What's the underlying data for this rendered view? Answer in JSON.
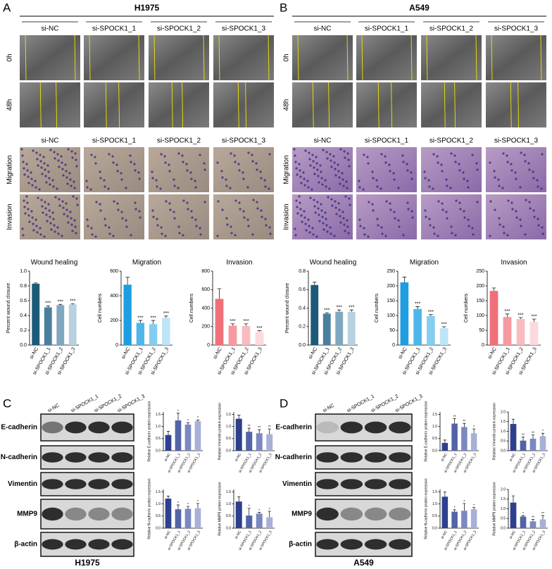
{
  "panel_a": {
    "label": "A",
    "title": "H1975",
    "columns": [
      "si-NC",
      "si-SPOCK1_1",
      "si-SPOCK1_2",
      "si-SPOCK1_3"
    ],
    "scratch_rows": [
      "0h",
      "48h"
    ],
    "transwell_columns": [
      "si-NC",
      "si-SPOCK1_1",
      "si-SPOCK1_2",
      "si-SPOCK1_3"
    ],
    "transwell_rows": [
      "Migration",
      "Invasion"
    ]
  },
  "panel_b": {
    "label": "B",
    "title": "A549",
    "columns": [
      "si-NC",
      "si-SPOCK1_1",
      "si-SPOCK1_2",
      "si-SPOCK1_3"
    ],
    "scratch_rows": [
      "0h",
      "48h"
    ],
    "transwell_columns": [
      "si-NC",
      "si-SPOCK1_1",
      "si-SPOCK1_2",
      "si-SPOCK1_3"
    ],
    "transwell_rows": [
      "Migration",
      "Invasion"
    ]
  },
  "panel_c": {
    "label": "C",
    "cell_line": "H1975",
    "lanes": [
      "si-NC",
      "si-SPOCK1_1",
      "si-SPOCK1_2",
      "si-SPOCK1_3"
    ],
    "proteins": [
      "E-cadherin",
      "N-cadherin",
      "Vimentin",
      "MMP9",
      "β-actin"
    ]
  },
  "panel_d": {
    "label": "D",
    "cell_line": "A549",
    "lanes": [
      "si-NC",
      "si-SPOCK1_1",
      "si-SPOCK1_2",
      "si-SPOCK1_3"
    ],
    "proteins": [
      "E-cadherin",
      "N-cadherin",
      "Vimentin",
      "MMP9",
      "β-actin"
    ]
  },
  "chart_data": [
    {
      "type": "bar",
      "title": "Wound healing",
      "ylabel": "Percent wound closure",
      "categories": [
        "si-NC",
        "si-SPOCK1_1",
        "si-SPOCK1_2",
        "si-SPOCK1_3"
      ],
      "values": [
        0.83,
        0.51,
        0.54,
        0.55
      ],
      "errors": [
        0.01,
        0.02,
        0.01,
        0.01
      ],
      "significance": [
        null,
        "***",
        "***",
        "***"
      ],
      "colors": [
        "#1b5a78",
        "#4a7f9e",
        "#7fa8c0",
        "#b8d1df"
      ],
      "ylim": [
        0,
        1
      ],
      "yticks": [
        {
          "value": 0,
          "label": "0.0"
        },
        0.2,
        0.4,
        0.6,
        0.8,
        {
          "value": 1,
          "label": "1.0"
        }
      ]
    },
    {
      "type": "bar",
      "title": "Migration",
      "ylabel": "Cell numbers",
      "categories": [
        "si-NC",
        "si-SPOCK1_1",
        "si-SPOCK1_2",
        "si-SPOCK1_3"
      ],
      "values": [
        490,
        180,
        170,
        220
      ],
      "errors": [
        60,
        20,
        30,
        15
      ],
      "significance": [
        null,
        "***",
        "***",
        "***"
      ],
      "colors": [
        "#1e9ee0",
        "#4fb6ea",
        "#85cdf0",
        "#bde4f7"
      ],
      "ylim": [
        0,
        600
      ],
      "yticks": [
        0,
        200,
        400,
        600
      ]
    },
    {
      "type": "bar",
      "title": "Invasion",
      "ylabel": "Cell numbers",
      "categories": [
        "si-NC",
        "si-SPOCK1_1",
        "si-SPOCK1_2",
        "si-SPOCK1_3"
      ],
      "values": [
        500,
        210,
        205,
        145
      ],
      "errors": [
        110,
        20,
        25,
        10
      ],
      "significance": [
        null,
        "***",
        "***",
        "***"
      ],
      "colors": [
        "#f0707a",
        "#f59aa0",
        "#f8bcc0",
        "#fbd9dc"
      ],
      "ylim": [
        0,
        800
      ],
      "yticks": [
        0,
        200,
        400,
        600,
        800
      ]
    },
    {
      "type": "bar",
      "title": "Wound healing",
      "ylabel": "Percent wound closure",
      "categories": [
        "si-NC",
        "si-SPOCK1_1",
        "si-SPOCK1_2",
        "si-SPOCK1_3"
      ],
      "values": [
        0.65,
        0.34,
        0.36,
        0.36
      ],
      "errors": [
        0.03,
        0.01,
        0.02,
        0.02
      ],
      "significance": [
        null,
        "***",
        "***",
        "***"
      ],
      "colors": [
        "#1b5a78",
        "#4a7f9e",
        "#7fa8c0",
        "#b8d1df"
      ],
      "ylim": [
        0,
        0.8
      ],
      "yticks": [
        {
          "value": 0,
          "label": "0.0"
        },
        0.2,
        0.4,
        0.6,
        0.8
      ]
    },
    {
      "type": "bar",
      "title": "Migration",
      "ylabel": "Cell numbers",
      "categories": [
        "si-NC",
        "si-SPOCK1_1",
        "si-SPOCK1_2",
        "si-SPOCK1_3"
      ],
      "values": [
        212,
        122,
        98,
        57
      ],
      "errors": [
        18,
        8,
        5,
        5
      ],
      "significance": [
        null,
        "***",
        "***",
        "***"
      ],
      "colors": [
        "#1e9ee0",
        "#4fb6ea",
        "#85cdf0",
        "#bde4f7"
      ],
      "ylim": [
        0,
        250
      ],
      "yticks": [
        0,
        50,
        100,
        150,
        200,
        250
      ]
    },
    {
      "type": "bar",
      "title": "Invasion",
      "ylabel": "Cell numbers",
      "categories": [
        "si-NC",
        "si-SPOCK1_1",
        "si-SPOCK1_2",
        "si-SPOCK1_3"
      ],
      "values": [
        183,
        95,
        88,
        78
      ],
      "errors": [
        10,
        10,
        5,
        10
      ],
      "significance": [
        null,
        "***",
        "***",
        "***"
      ],
      "colors": [
        "#f0707a",
        "#f59aa0",
        "#f8bcc0",
        "#fbd9dc"
      ],
      "ylim": [
        0,
        250
      ],
      "yticks": [
        0,
        50,
        100,
        150,
        200,
        250
      ]
    },
    {
      "type": "bar",
      "ylabel": "Relative E-cadherin protein expression",
      "categories": [
        "si-NC",
        "si-SPOCK1_1",
        "si-SPOCK1_2",
        "si-SPOCK1_3"
      ],
      "values": [
        0.65,
        1.25,
        1.08,
        1.22
      ],
      "errors": [
        0.15,
        0.3,
        0.08,
        0.05
      ],
      "significance": [
        null,
        "*",
        "*",
        "*"
      ],
      "colors": [
        "#2e3f8f",
        "#5363a8",
        "#7c88c0",
        "#a8b0d8"
      ],
      "ylim": [
        0,
        1.6
      ],
      "yticks": [
        {
          "value": 0,
          "label": "0.0"
        },
        0.5,
        {
          "value": 1,
          "label": "1.0"
        },
        1.5
      ]
    },
    {
      "type": "bar",
      "ylabel": "Relative Vimentin protein expression",
      "categories": [
        "si-NC",
        "si-SPOCK1_1",
        "si-SPOCK1_2",
        "si-SPOCK1_3"
      ],
      "values": [
        1.32,
        0.78,
        0.72,
        0.68
      ],
      "errors": [
        0.15,
        0.15,
        0.15,
        0.22
      ],
      "significance": [
        null,
        "**",
        "**",
        "**"
      ],
      "colors": [
        "#2e3f8f",
        "#5363a8",
        "#7c88c0",
        "#a8b0d8"
      ],
      "ylim": [
        0,
        1.6
      ],
      "yticks": [
        {
          "value": 0,
          "label": "0.0"
        },
        0.5,
        {
          "value": 1,
          "label": "1.0"
        },
        1.5
      ]
    },
    {
      "type": "bar",
      "ylabel": "Relative N-cadherin protein expression",
      "categories": [
        "si-NC",
        "si-SPOCK1_1",
        "si-SPOCK1_2",
        "si-SPOCK1_3"
      ],
      "values": [
        1.22,
        0.78,
        0.8,
        0.82
      ],
      "errors": [
        0.1,
        0.18,
        0.1,
        0.2
      ],
      "significance": [
        null,
        "*",
        "*",
        "*"
      ],
      "colors": [
        "#2e3f8f",
        "#5363a8",
        "#7c88c0",
        "#a8b0d8"
      ],
      "ylim": [
        0,
        1.6
      ],
      "yticks": [
        {
          "value": 0,
          "label": "0.0"
        },
        0.5,
        {
          "value": 1,
          "label": "1.0"
        },
        1.5
      ]
    },
    {
      "type": "bar",
      "ylabel": "Relative MMP9 protein expression",
      "categories": [
        "si-NC",
        "si-SPOCK1_1",
        "si-SPOCK1_2",
        "si-SPOCK1_3"
      ],
      "values": [
        1.1,
        0.52,
        0.6,
        0.45
      ],
      "errors": [
        0.2,
        0.3,
        0.05,
        0.25
      ],
      "significance": [
        null,
        "*",
        "*",
        "*"
      ],
      "colors": [
        "#2e3f8f",
        "#5363a8",
        "#7c88c0",
        "#a8b0d8"
      ],
      "ylim": [
        0,
        1.6
      ],
      "yticks": [
        {
          "value": 0,
          "label": "0.0"
        },
        0.5,
        {
          "value": 1,
          "label": "1.0"
        },
        1.5
      ]
    },
    {
      "type": "bar",
      "ylabel": "Relative E-cadherin protein expression",
      "categories": [
        "si-NC",
        "si-SPOCK1_1",
        "si-SPOCK1_2",
        "si-SPOCK1_3"
      ],
      "values": [
        0.32,
        1.12,
        0.98,
        0.72
      ],
      "errors": [
        0.12,
        0.2,
        0.15,
        0.18
      ],
      "significance": [
        null,
        "**",
        "**",
        "*"
      ],
      "colors": [
        "#2e3f8f",
        "#5363a8",
        "#7c88c0",
        "#a8b0d8"
      ],
      "ylim": [
        0,
        1.6
      ],
      "yticks": [
        {
          "value": 0,
          "label": "0.0"
        },
        0.5,
        {
          "value": 1,
          "label": "1.0"
        },
        1.5
      ]
    },
    {
      "type": "bar",
      "ylabel": "Relative Vimentin protein expression",
      "categories": [
        "si-NC",
        "si-SPOCK1_1",
        "si-SPOCK1_2",
        "si-SPOCK1_3"
      ],
      "values": [
        1.38,
        0.52,
        0.62,
        0.75
      ],
      "errors": [
        0.25,
        0.18,
        0.2,
        0.15
      ],
      "significance": [
        null,
        "**",
        "**",
        "*"
      ],
      "colors": [
        "#2e3f8f",
        "#5363a8",
        "#7c88c0",
        "#a8b0d8"
      ],
      "ylim": [
        0,
        2
      ],
      "yticks": [
        {
          "value": 0,
          "label": "0.0"
        },
        0.5,
        {
          "value": 1,
          "label": "1.0"
        },
        1.5,
        {
          "value": 2,
          "label": "2.0"
        }
      ]
    },
    {
      "type": "bar",
      "ylabel": "Relative N-cadherin protein expression",
      "categories": [
        "si-NC",
        "si-SPOCK1_1",
        "si-SPOCK1_2",
        "si-SPOCK1_3"
      ],
      "values": [
        1.3,
        0.68,
        0.72,
        0.78
      ],
      "errors": [
        0.2,
        0.08,
        0.3,
        0.08
      ],
      "significance": [
        null,
        "*",
        "*",
        "*"
      ],
      "colors": [
        "#2e3f8f",
        "#5363a8",
        "#7c88c0",
        "#a8b0d8"
      ],
      "ylim": [
        0,
        1.6
      ],
      "yticks": [
        {
          "value": 0,
          "label": "0.0"
        },
        0.5,
        {
          "value": 1,
          "label": "1.0"
        },
        1.5
      ]
    },
    {
      "type": "bar",
      "ylabel": "Relative MMP9 protein expression",
      "categories": [
        "si-NC",
        "si-SPOCK1_1",
        "si-SPOCK1_2",
        "si-SPOCK1_3"
      ],
      "values": [
        1.32,
        0.6,
        0.35,
        0.45
      ],
      "errors": [
        0.35,
        0.05,
        0.1,
        0.2
      ],
      "significance": [
        null,
        "*",
        "**",
        "**"
      ],
      "colors": [
        "#2e3f8f",
        "#5363a8",
        "#7c88c0",
        "#a8b0d8"
      ],
      "ylim": [
        0,
        2
      ],
      "yticks": [
        {
          "value": 0,
          "label": "0.0"
        },
        0.5,
        {
          "value": 1,
          "label": "1.0"
        },
        1.5,
        {
          "value": 2,
          "label": "2.0"
        }
      ]
    }
  ]
}
